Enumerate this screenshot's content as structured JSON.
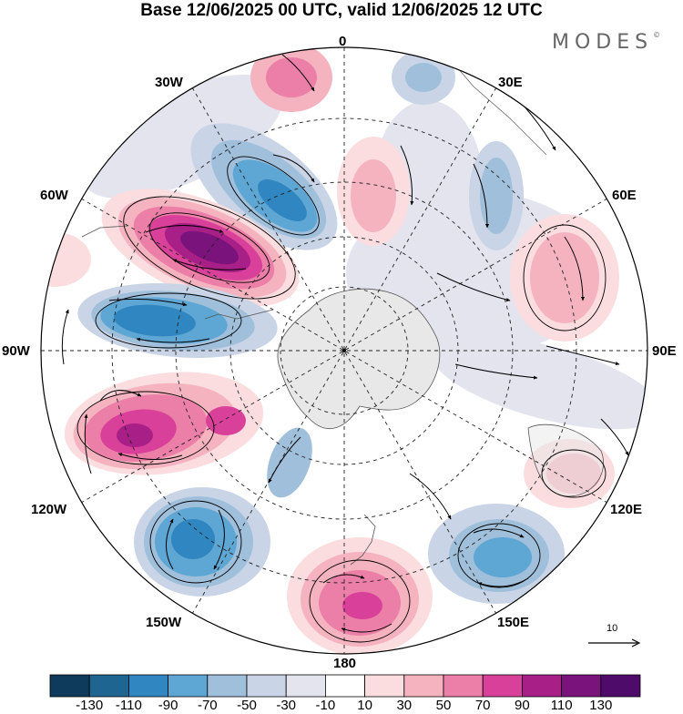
{
  "title": "Base 12/06/2025 00 UTC, valid 12/06/2025 12 UTC",
  "logo": "MODES",
  "logo_mark": "©",
  "meridian_labels": {
    "lon_0": "0",
    "lon_30e": "30E",
    "lon_60e": "60E",
    "lon_90e": "90E",
    "lon_120e": "120E",
    "lon_150e": "150E",
    "lon_180": "180",
    "lon_150w": "150W",
    "lon_120w": "120W",
    "lon_90w": "90W",
    "lon_60w": "60W",
    "lon_30w": "30W"
  },
  "reference_vector": "10",
  "colorbar": {
    "ticks": [
      "-130",
      "-110",
      "-90",
      "-70",
      "-50",
      "-30",
      "-10",
      "10",
      "30",
      "50",
      "70",
      "90",
      "110",
      "130"
    ],
    "colors": [
      "#0e3b5c",
      "#1f6592",
      "#2f86c0",
      "#5ea6d3",
      "#9fbfdb",
      "#c9d4e6",
      "#e4e4ef",
      "#ffffff",
      "#fbdde0",
      "#f5b3bf",
      "#ec7fa8",
      "#d9409a",
      "#a81f87",
      "#7a137c",
      "#4e0b6a"
    ]
  },
  "colors": {
    "land": "#e8e8e8",
    "grid": "#222222"
  }
}
